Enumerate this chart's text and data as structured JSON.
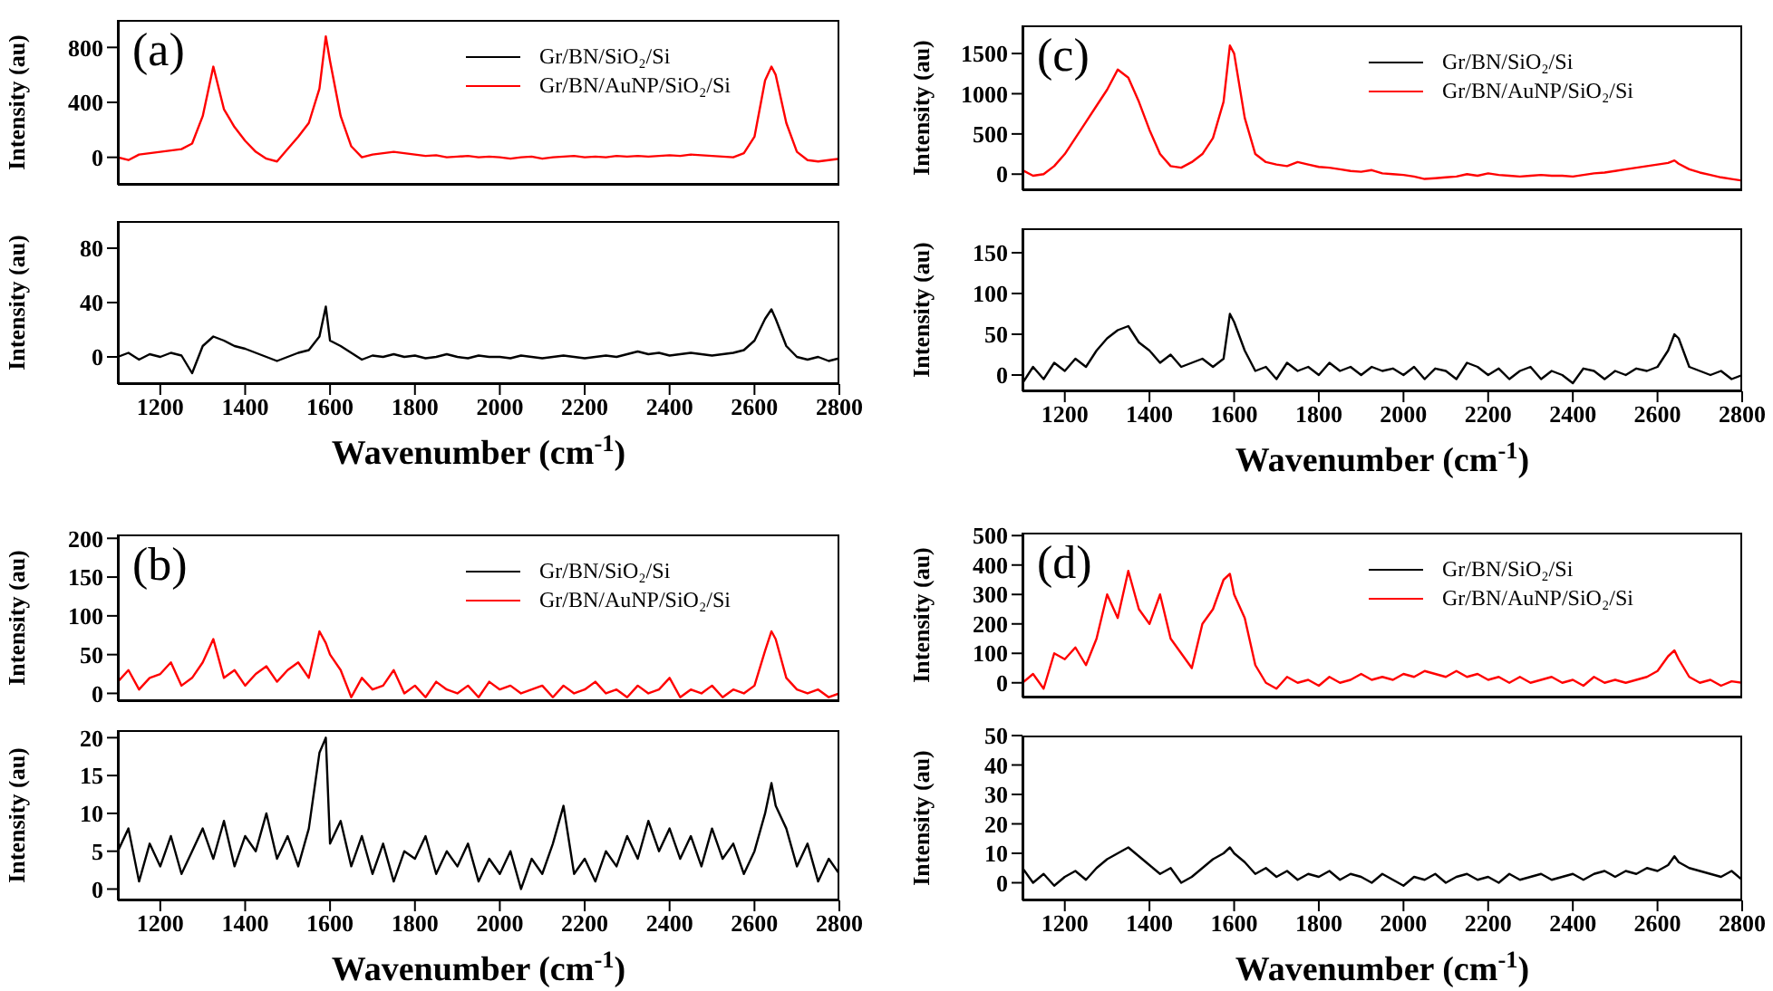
{
  "chart_data": [
    {
      "type": "line",
      "ylabel": "Intensity (au)",
      "annotations": [
        "(a)"
      ],
      "legend": "top right",
      "tick_labels": "y",
      "xlim": [
        1100,
        2800
      ],
      "xticks": [
        1200,
        1400,
        1600,
        1800,
        2000,
        2200,
        2400,
        2600,
        2800
      ],
      "ylim": [
        -200,
        1000
      ],
      "yticks": [
        0,
        400,
        800
      ],
      "x": [
        1100,
        1125,
        1150,
        1175,
        1200,
        1225,
        1250,
        1275,
        1300,
        1325,
        1350,
        1375,
        1400,
        1425,
        1450,
        1475,
        1500,
        1525,
        1550,
        1575,
        1590,
        1600,
        1625,
        1650,
        1675,
        1700,
        1725,
        1750,
        1775,
        1800,
        1825,
        1850,
        1875,
        1900,
        1925,
        1950,
        1975,
        2000,
        2025,
        2050,
        2075,
        2100,
        2125,
        2150,
        2175,
        2200,
        2225,
        2250,
        2275,
        2300,
        2325,
        2350,
        2375,
        2400,
        2425,
        2450,
        2475,
        2500,
        2525,
        2550,
        2575,
        2600,
        2625,
        2640,
        2650,
        2675,
        2700,
        2725,
        2750,
        2775,
        2800
      ],
      "series": [
        {
          "name": "Gr/BN/AuNP/SiO₂/Si",
          "color": "#ff0000",
          "values": [
            0,
            -20,
            20,
            30,
            40,
            50,
            60,
            100,
            300,
            660,
            350,
            220,
            120,
            40,
            -10,
            -30,
            60,
            150,
            250,
            500,
            880,
            700,
            300,
            80,
            0,
            20,
            30,
            40,
            30,
            20,
            10,
            15,
            0,
            5,
            10,
            0,
            5,
            0,
            -10,
            0,
            5,
            -10,
            0,
            5,
            10,
            0,
            5,
            0,
            10,
            5,
            10,
            5,
            10,
            15,
            10,
            20,
            15,
            10,
            5,
            0,
            30,
            150,
            560,
            660,
            600,
            250,
            40,
            -20,
            -30,
            -20,
            -10
          ]
        }
      ]
    },
    {
      "type": "line",
      "xlabel": "Wavenumber (cm$^{-1}$)",
      "ylabel": "Intensity (au)",
      "xlim": [
        1100,
        2800
      ],
      "xticks": [
        1200,
        1400,
        1600,
        1800,
        2000,
        2200,
        2400,
        2600,
        2800
      ],
      "ylim": [
        -20,
        100
      ],
      "yticks": [
        0,
        40,
        80
      ],
      "x": [
        1100,
        1125,
        1150,
        1175,
        1200,
        1225,
        1250,
        1275,
        1300,
        1325,
        1350,
        1375,
        1400,
        1425,
        1450,
        1475,
        1500,
        1525,
        1550,
        1575,
        1590,
        1600,
        1625,
        1650,
        1675,
        1700,
        1725,
        1750,
        1775,
        1800,
        1825,
        1850,
        1875,
        1900,
        1925,
        1950,
        1975,
        2000,
        2025,
        2050,
        2075,
        2100,
        2125,
        2150,
        2175,
        2200,
        2225,
        2250,
        2275,
        2300,
        2325,
        2350,
        2375,
        2400,
        2425,
        2450,
        2475,
        2500,
        2525,
        2550,
        2575,
        2600,
        2625,
        2640,
        2650,
        2675,
        2700,
        2725,
        2750,
        2775,
        2800
      ],
      "series": [
        {
          "name": "Gr/BN/SiO₂/Si",
          "color": "#000000",
          "values": [
            0,
            3,
            -2,
            2,
            0,
            3,
            1,
            -12,
            8,
            15,
            12,
            8,
            6,
            3,
            0,
            -3,
            0,
            3,
            5,
            15,
            37,
            12,
            8,
            3,
            -2,
            1,
            0,
            2,
            0,
            1,
            -1,
            0,
            2,
            0,
            -1,
            1,
            0,
            0,
            -1,
            1,
            0,
            -1,
            0,
            1,
            0,
            -1,
            0,
            1,
            0,
            2,
            4,
            2,
            3,
            1,
            2,
            3,
            2,
            1,
            2,
            3,
            5,
            12,
            28,
            35,
            28,
            8,
            0,
            -2,
            0,
            -3,
            -1
          ]
        }
      ]
    },
    {
      "type": "line",
      "ylabel": "Intensity (au)",
      "annotations": [
        "(c)"
      ],
      "legend": "top right",
      "tick_labels": "y",
      "xlim": [
        1100,
        2800
      ],
      "xticks": [
        1200,
        1400,
        1600,
        1800,
        2000,
        2200,
        2400,
        2600,
        2800
      ],
      "ylim": [
        -200,
        1850
      ],
      "yticks": [
        0,
        500,
        1000,
        1500
      ],
      "x": [
        1100,
        1125,
        1150,
        1175,
        1200,
        1225,
        1250,
        1275,
        1300,
        1325,
        1350,
        1375,
        1400,
        1425,
        1450,
        1475,
        1500,
        1525,
        1550,
        1575,
        1590,
        1600,
        1625,
        1650,
        1675,
        1700,
        1725,
        1750,
        1775,
        1800,
        1825,
        1850,
        1875,
        1900,
        1925,
        1950,
        1975,
        2000,
        2025,
        2050,
        2075,
        2100,
        2125,
        2150,
        2175,
        2200,
        2225,
        2250,
        2275,
        2300,
        2325,
        2350,
        2375,
        2400,
        2425,
        2450,
        2475,
        2500,
        2525,
        2550,
        2575,
        2600,
        2625,
        2640,
        2650,
        2675,
        2700,
        2725,
        2750,
        2775,
        2800
      ],
      "series": [
        {
          "name": "Gr/BN/AuNP/SiO₂/Si",
          "color": "#ff0000",
          "values": [
            50,
            -20,
            0,
            100,
            250,
            450,
            650,
            850,
            1050,
            1300,
            1200,
            900,
            550,
            250,
            100,
            80,
            150,
            250,
            450,
            900,
            1600,
            1500,
            700,
            250,
            150,
            120,
            100,
            150,
            120,
            90,
            80,
            60,
            40,
            30,
            50,
            10,
            0,
            -10,
            -30,
            -60,
            -50,
            -40,
            -30,
            0,
            -20,
            10,
            -10,
            -20,
            -30,
            -20,
            -10,
            -20,
            -20,
            -30,
            -10,
            10,
            20,
            40,
            60,
            80,
            100,
            120,
            140,
            170,
            130,
            60,
            20,
            -10,
            -40,
            -60,
            -80
          ]
        }
      ]
    },
    {
      "type": "line",
      "xlabel": "Wavenumber (cm$^{-1}$)",
      "ylabel": "Intensity (au)",
      "xlim": [
        1100,
        2800
      ],
      "xticks": [
        1200,
        1400,
        1600,
        1800,
        2000,
        2200,
        2400,
        2600,
        2800
      ],
      "ylim": [
        -20,
        180
      ],
      "yticks": [
        0,
        50,
        100,
        150
      ],
      "x": [
        1100,
        1125,
        1150,
        1175,
        1200,
        1225,
        1250,
        1275,
        1300,
        1325,
        1350,
        1375,
        1400,
        1425,
        1450,
        1475,
        1500,
        1525,
        1550,
        1575,
        1590,
        1600,
        1625,
        1650,
        1675,
        1700,
        1725,
        1750,
        1775,
        1800,
        1825,
        1850,
        1875,
        1900,
        1925,
        1950,
        1975,
        2000,
        2025,
        2050,
        2075,
        2100,
        2125,
        2150,
        2175,
        2200,
        2225,
        2250,
        2275,
        2300,
        2325,
        2350,
        2375,
        2400,
        2425,
        2450,
        2475,
        2500,
        2525,
        2550,
        2575,
        2600,
        2625,
        2640,
        2650,
        2675,
        2700,
        2725,
        2750,
        2775,
        2800
      ],
      "series": [
        {
          "name": "Gr/BN/SiO₂/Si",
          "color": "#000000",
          "values": [
            -10,
            10,
            -5,
            15,
            5,
            20,
            10,
            30,
            45,
            55,
            60,
            40,
            30,
            15,
            25,
            10,
            15,
            20,
            10,
            20,
            75,
            65,
            30,
            5,
            10,
            -5,
            15,
            5,
            10,
            0,
            15,
            5,
            10,
            0,
            10,
            5,
            8,
            0,
            10,
            -5,
            8,
            5,
            -5,
            15,
            10,
            0,
            8,
            -5,
            5,
            10,
            -5,
            5,
            0,
            -10,
            8,
            5,
            -5,
            5,
            0,
            8,
            5,
            10,
            30,
            50,
            45,
            10,
            5,
            0,
            5,
            -5,
            0
          ]
        }
      ]
    },
    {
      "type": "line",
      "ylabel": "Intensity (au)",
      "annotations": [
        "(b)"
      ],
      "legend": "top right",
      "tick_labels": "y",
      "xlim": [
        1100,
        2800
      ],
      "xticks": [
        1200,
        1400,
        1600,
        1800,
        2000,
        2200,
        2400,
        2600,
        2800
      ],
      "ylim": [
        -10,
        205
      ],
      "yticks": [
        0,
        50,
        100,
        150,
        200
      ],
      "x": [
        1100,
        1125,
        1150,
        1175,
        1200,
        1225,
        1250,
        1275,
        1300,
        1325,
        1350,
        1375,
        1400,
        1425,
        1450,
        1475,
        1500,
        1525,
        1550,
        1575,
        1590,
        1600,
        1625,
        1650,
        1675,
        1700,
        1725,
        1750,
        1775,
        1800,
        1825,
        1850,
        1875,
        1900,
        1925,
        1950,
        1975,
        2000,
        2025,
        2050,
        2075,
        2100,
        2125,
        2150,
        2175,
        2200,
        2225,
        2250,
        2275,
        2300,
        2325,
        2350,
        2375,
        2400,
        2425,
        2450,
        2475,
        2500,
        2525,
        2550,
        2575,
        2600,
        2625,
        2640,
        2650,
        2675,
        2700,
        2725,
        2750,
        2775,
        2800
      ],
      "series": [
        {
          "name": "Gr/BN/AuNP/SiO₂/Si",
          "color": "#ff0000",
          "values": [
            15,
            30,
            5,
            20,
            25,
            40,
            10,
            20,
            40,
            70,
            20,
            30,
            10,
            25,
            35,
            15,
            30,
            40,
            20,
            80,
            65,
            50,
            30,
            -5,
            20,
            5,
            10,
            30,
            0,
            10,
            -5,
            15,
            5,
            0,
            10,
            -5,
            15,
            5,
            10,
            0,
            5,
            10,
            -5,
            10,
            0,
            5,
            15,
            0,
            5,
            -5,
            10,
            0,
            5,
            20,
            -5,
            5,
            0,
            10,
            -5,
            5,
            0,
            10,
            55,
            80,
            70,
            20,
            5,
            0,
            5,
            -5,
            0
          ]
        }
      ]
    },
    {
      "type": "line",
      "xlabel": "Wavenumber (cm$^{-1}$)",
      "ylabel": "Intensity (au)",
      "xlim": [
        1100,
        2800
      ],
      "xticks": [
        1200,
        1400,
        1600,
        1800,
        2000,
        2200,
        2400,
        2600,
        2800
      ],
      "ylim": [
        -1.5,
        21
      ],
      "yticks": [
        0,
        5,
        10,
        15,
        20
      ],
      "x": [
        1100,
        1125,
        1150,
        1175,
        1200,
        1225,
        1250,
        1275,
        1300,
        1325,
        1350,
        1375,
        1400,
        1425,
        1450,
        1475,
        1500,
        1525,
        1550,
        1575,
        1590,
        1600,
        1625,
        1650,
        1675,
        1700,
        1725,
        1750,
        1775,
        1800,
        1825,
        1850,
        1875,
        1900,
        1925,
        1950,
        1975,
        2000,
        2025,
        2050,
        2075,
        2100,
        2125,
        2150,
        2175,
        2200,
        2225,
        2250,
        2275,
        2300,
        2325,
        2350,
        2375,
        2400,
        2425,
        2450,
        2475,
        2500,
        2525,
        2550,
        2575,
        2600,
        2625,
        2640,
        2650,
        2675,
        2700,
        2725,
        2750,
        2775,
        2800
      ],
      "series": [
        {
          "name": "Gr/BN/SiO₂/Si",
          "color": "#000000",
          "values": [
            5,
            8,
            1,
            6,
            3,
            7,
            2,
            5,
            8,
            4,
            9,
            3,
            7,
            5,
            10,
            4,
            7,
            3,
            8,
            18,
            20,
            6,
            9,
            3,
            7,
            2,
            6,
            1,
            5,
            4,
            7,
            2,
            5,
            3,
            6,
            1,
            4,
            2,
            5,
            0,
            4,
            2,
            6,
            11,
            2,
            4,
            1,
            5,
            3,
            7,
            4,
            9,
            5,
            8,
            4,
            7,
            3,
            8,
            4,
            6,
            2,
            5,
            10,
            14,
            11,
            8,
            3,
            6,
            1,
            4,
            2
          ]
        }
      ]
    },
    {
      "type": "line",
      "ylabel": "Intensity (au)",
      "annotations": [
        "(d)"
      ],
      "legend": "top right",
      "tick_labels": "y",
      "xlim": [
        1100,
        2800
      ],
      "xticks": [
        1200,
        1400,
        1600,
        1800,
        2000,
        2200,
        2400,
        2600,
        2800
      ],
      "ylim": [
        -50,
        510
      ],
      "yticks": [
        0,
        100,
        200,
        300,
        400,
        500
      ],
      "x": [
        1100,
        1125,
        1150,
        1175,
        1200,
        1225,
        1250,
        1275,
        1300,
        1325,
        1350,
        1375,
        1400,
        1425,
        1450,
        1475,
        1500,
        1525,
        1550,
        1575,
        1590,
        1600,
        1625,
        1650,
        1675,
        1700,
        1725,
        1750,
        1775,
        1800,
        1825,
        1850,
        1875,
        1900,
        1925,
        1950,
        1975,
        2000,
        2025,
        2050,
        2075,
        2100,
        2125,
        2150,
        2175,
        2200,
        2225,
        2250,
        2275,
        2300,
        2325,
        2350,
        2375,
        2400,
        2425,
        2450,
        2475,
        2500,
        2525,
        2550,
        2575,
        2600,
        2625,
        2640,
        2650,
        2675,
        2700,
        2725,
        2750,
        2775,
        2800
      ],
      "series": [
        {
          "name": "Gr/BN/AuNP/SiO₂/Si",
          "color": "#ff0000",
          "values": [
            0,
            30,
            -20,
            100,
            80,
            120,
            60,
            150,
            300,
            220,
            380,
            250,
            200,
            300,
            150,
            100,
            50,
            200,
            250,
            350,
            370,
            300,
            220,
            60,
            0,
            -20,
            20,
            0,
            10,
            -10,
            20,
            0,
            10,
            30,
            10,
            20,
            10,
            30,
            20,
            40,
            30,
            20,
            40,
            20,
            30,
            10,
            20,
            0,
            20,
            0,
            10,
            20,
            0,
            10,
            -10,
            20,
            0,
            10,
            0,
            10,
            20,
            40,
            90,
            110,
            80,
            20,
            0,
            10,
            -10,
            5,
            0
          ]
        }
      ]
    },
    {
      "type": "line",
      "xlabel": "Wavenumber (cm$^{-1}$)",
      "ylabel": "Intensity (au)",
      "xlim": [
        1100,
        2800
      ],
      "xticks": [
        1200,
        1400,
        1600,
        1800,
        2000,
        2200,
        2400,
        2600,
        2800
      ],
      "ylim": [
        -6,
        50
      ],
      "yticks": [
        0,
        10,
        20,
        30,
        40,
        50
      ],
      "x": [
        1100,
        1125,
        1150,
        1175,
        1200,
        1225,
        1250,
        1275,
        1300,
        1325,
        1350,
        1375,
        1400,
        1425,
        1450,
        1475,
        1500,
        1525,
        1550,
        1575,
        1590,
        1600,
        1625,
        1650,
        1675,
        1700,
        1725,
        1750,
        1775,
        1800,
        1825,
        1850,
        1875,
        1900,
        1925,
        1950,
        1975,
        2000,
        2025,
        2050,
        2075,
        2100,
        2125,
        2150,
        2175,
        2200,
        2225,
        2250,
        2275,
        2300,
        2325,
        2350,
        2375,
        2400,
        2425,
        2450,
        2475,
        2500,
        2525,
        2550,
        2575,
        2600,
        2625,
        2640,
        2650,
        2675,
        2700,
        2725,
        2750,
        2775,
        2800
      ],
      "series": [
        {
          "name": "Gr/BN/SiO₂/Si",
          "color": "#000000",
          "values": [
            5,
            0,
            3,
            -1,
            2,
            4,
            1,
            5,
            8,
            10,
            12,
            9,
            6,
            3,
            5,
            0,
            2,
            5,
            8,
            10,
            12,
            10,
            7,
            3,
            5,
            2,
            4,
            1,
            3,
            2,
            4,
            1,
            3,
            2,
            0,
            3,
            1,
            -1,
            2,
            1,
            3,
            0,
            2,
            3,
            1,
            2,
            0,
            3,
            1,
            2,
            3,
            1,
            2,
            3,
            1,
            3,
            4,
            2,
            4,
            3,
            5,
            4,
            6,
            9,
            7,
            5,
            4,
            3,
            2,
            4,
            1
          ]
        }
      ]
    }
  ]
}
